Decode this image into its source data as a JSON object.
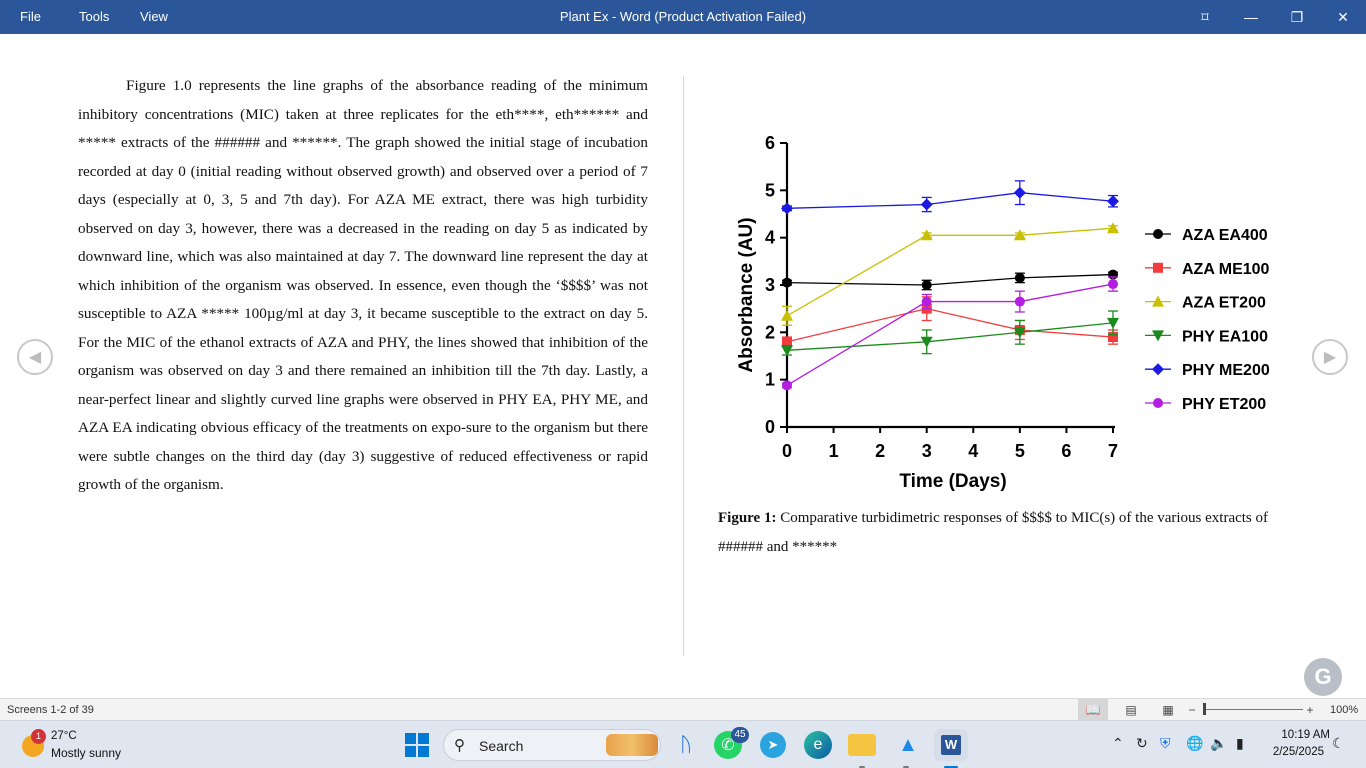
{
  "titlebar": {
    "menu": [
      "File",
      "Tools",
      "View"
    ],
    "title": "Plant Ex - Word (Product Activation Failed)",
    "buttons": {
      "focus": "⌑",
      "minimize": "—",
      "restore": "❐",
      "close": "✕"
    }
  },
  "document": {
    "paragraph": "Figure 1.0 represents the line graphs of the absorbance reading of the minimum inhibitory concentrations (MIC) taken at three replicates for the eth****, eth****** and ***** extracts of the ###### and ******. The graph showed the initial stage of incubation recorded at day 0 (initial reading without observed growth) and observed over a period of 7 days (especially at 0, 3, 5 and 7th day). For AZA ME extract, there was high turbidity observed on day 3, however, there was a decreased in the reading on day 5 as indicated by downward line, which was also maintained at day 7. The downward line represent the day at which inhibition of the organism was observed. In essence, even though the ‘$$$$’ was not susceptible to AZA ***** 100µg/ml at day 3, it became susceptible to the extract on day 5. For the MIC of the ethanol extracts of AZA and PHY, the lines showed that inhibition of the organism was observed on day 3 and there remained an inhibition till the 7th day. Lastly, a near-perfect linear and slightly curved line graphs were observed in PHY EA, PHY ME, and AZA EA indicating obvious efficacy of the treatments on expo-sure to the organism but there were subtle changes on the third day (day 3) suggestive of reduced effectiveness or rapid growth of the organism.",
    "caption_label": "Figure 1:",
    "caption_text": " Comparative turbidimetric responses of $$$$ to MIC(s) of the various extracts of ###### and ******",
    "nav_prev": "◀",
    "nav_next": "▶",
    "grammarly": "G"
  },
  "chart_data": {
    "type": "line",
    "xlabel": "Time (Days)",
    "ylabel": "Absorbance (AU)",
    "xlim": [
      0,
      7
    ],
    "ylim": [
      0,
      6
    ],
    "xticks": [
      "0",
      "1",
      "2",
      "3",
      "4",
      "5",
      "6",
      "7"
    ],
    "yticks": [
      "0",
      "1",
      "2",
      "3",
      "4",
      "5",
      "6"
    ],
    "x": [
      0,
      3,
      5,
      7
    ],
    "legend_position": "right",
    "grid": false,
    "series": [
      {
        "name": "AZA EA400",
        "color": "#000000",
        "marker": "circle",
        "values": [
          3.05,
          3.0,
          3.15,
          3.22
        ],
        "errors": [
          0.05,
          0.1,
          0.1,
          0.05
        ]
      },
      {
        "name": "AZA ME100",
        "color": "#f03c3c",
        "marker": "square",
        "values": [
          1.8,
          2.5,
          2.05,
          1.9
        ],
        "errors": [
          0.1,
          0.25,
          0.2,
          0.15
        ]
      },
      {
        "name": "AZA ET200",
        "color": "#c8c000",
        "marker": "triangle-up",
        "values": [
          2.35,
          4.05,
          4.05,
          4.2
        ],
        "errors": [
          0.2,
          0.05,
          0.05,
          0.05
        ]
      },
      {
        "name": "PHY EA100",
        "color": "#1c8a1c",
        "marker": "triangle-down",
        "values": [
          1.62,
          1.8,
          2.0,
          2.2
        ],
        "errors": [
          0.1,
          0.25,
          0.25,
          0.25
        ]
      },
      {
        "name": "PHY ME200",
        "color": "#1a1ae0",
        "marker": "diamond",
        "values": [
          4.62,
          4.7,
          4.95,
          4.77
        ],
        "errors": [
          0.05,
          0.15,
          0.25,
          0.12
        ]
      },
      {
        "name": "PHY ET200",
        "color": "#b31ee0",
        "marker": "circle",
        "values": [
          0.88,
          2.65,
          2.65,
          3.02
        ],
        "errors": [
          0.05,
          0.15,
          0.22,
          0.15
        ]
      }
    ]
  },
  "statusbar": {
    "pages": "Screens 1-2 of 39",
    "zoom": "100%",
    "zoom_minus": "−",
    "zoom_plus": "+"
  },
  "taskbar": {
    "weather_badge": "1",
    "temperature": "27°C",
    "weather": "Mostly sunny",
    "search_label": "Search",
    "whatsapp_badge": "45",
    "time": "10:19 AM",
    "date": "2/25/2025"
  },
  "colors": {
    "titlebar": "#2b579a",
    "taskbar": "#dfe6ef",
    "accent": "#0078d4"
  }
}
